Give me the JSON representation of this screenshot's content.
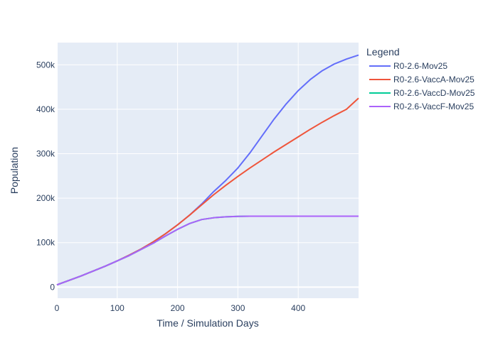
{
  "chart_data": {
    "type": "line",
    "title": "",
    "xlabel": "Time / Simulation Days",
    "ylabel": "Population",
    "xlim": [
      0,
      500
    ],
    "ylim": [
      -25000,
      550000
    ],
    "x_ticks": [
      0,
      100,
      200,
      300,
      400
    ],
    "x_tick_labels": [
      "0",
      "100",
      "200",
      "300",
      "400"
    ],
    "y_ticks": [
      0,
      100000,
      200000,
      300000,
      400000,
      500000
    ],
    "y_tick_labels": [
      "0",
      "100k",
      "200k",
      "300k",
      "400k",
      "500k"
    ],
    "grid": true,
    "legend": {
      "title": "Legend",
      "placement": "right"
    },
    "colors": {
      "plot_bg": "#e5ecf6",
      "grid": "#ffffff",
      "text": "#2a3f5f"
    },
    "series": [
      {
        "name": "R0-2.6-Mov25",
        "color": "#636efa",
        "x": [
          0,
          20,
          40,
          60,
          80,
          100,
          120,
          140,
          160,
          180,
          200,
          220,
          240,
          260,
          280,
          300,
          320,
          340,
          360,
          380,
          400,
          420,
          440,
          460,
          480,
          500
        ],
        "y": [
          5000,
          15000,
          25000,
          36000,
          47000,
          59000,
          72000,
          86000,
          102000,
          120000,
          140000,
          162000,
          187000,
          215000,
          240000,
          268000,
          302000,
          340000,
          378000,
          412000,
          442000,
          467000,
          487000,
          502000,
          513000,
          522000
        ]
      },
      {
        "name": "R0-2.6-VaccA-Mov25",
        "color": "#ef553b",
        "x": [
          0,
          20,
          40,
          60,
          80,
          100,
          120,
          140,
          160,
          180,
          200,
          220,
          240,
          260,
          280,
          300,
          320,
          340,
          360,
          380,
          400,
          420,
          440,
          460,
          480,
          500
        ],
        "y": [
          5000,
          15000,
          25000,
          36000,
          47000,
          59000,
          72000,
          86000,
          102000,
          120000,
          140000,
          162000,
          185000,
          208000,
          229000,
          249000,
          268000,
          286000,
          304000,
          321000,
          338000,
          355000,
          371000,
          386000,
          400000,
          425000
        ]
      },
      {
        "name": "R0-2.6-VaccD-Mov25",
        "color": "#00cc96",
        "x": [
          0,
          20,
          40,
          60,
          80,
          100,
          120,
          140,
          160,
          180,
          200,
          220,
          240,
          260,
          280,
          300,
          320,
          340,
          360,
          380,
          400,
          420,
          440,
          460,
          480,
          500
        ],
        "y": [
          5000,
          15000,
          25000,
          36000,
          47000,
          59000,
          71000,
          85000,
          99000,
          115000,
          130000,
          143000,
          152000,
          156000,
          158000,
          159000,
          159500,
          159500,
          159500,
          159500,
          159500,
          159500,
          159500,
          159500,
          159500,
          159500
        ]
      },
      {
        "name": "R0-2.6-VaccF-Mov25",
        "color": "#ab63fa",
        "x": [
          0,
          20,
          40,
          60,
          80,
          100,
          120,
          140,
          160,
          180,
          200,
          220,
          240,
          260,
          280,
          300,
          320,
          340,
          360,
          380,
          400,
          420,
          440,
          460,
          480,
          500
        ],
        "y": [
          5000,
          15000,
          25000,
          36000,
          47000,
          59000,
          71000,
          85000,
          99000,
          115000,
          130000,
          143000,
          152000,
          156000,
          158000,
          159000,
          159500,
          159500,
          159500,
          159500,
          159500,
          159500,
          159500,
          159500,
          159500,
          159500
        ]
      }
    ]
  }
}
